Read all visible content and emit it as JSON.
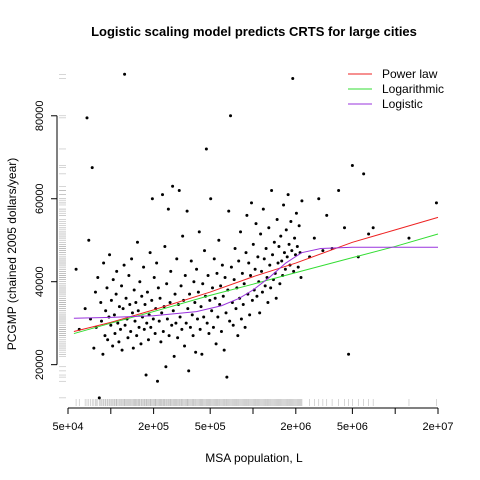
{
  "chart_data": {
    "type": "scatter",
    "title": "Logistic scaling model predicts CRTS for large cities",
    "xlabel": "MSA population, L",
    "ylabel": "PCGMP (chained 2005 dollars/year)",
    "xscale": "log",
    "xlim": [
      50000,
      20000000
    ],
    "ylim": [
      11000,
      92000
    ],
    "x_ticks": [
      {
        "value": 50000,
        "label": "5e+04"
      },
      {
        "value": 200000,
        "label": "2e+05"
      },
      {
        "value": 500000,
        "label": "5e+05"
      },
      {
        "value": 2000000,
        "label": "2e+06"
      },
      {
        "value": 5000000,
        "label": "5e+06"
      },
      {
        "value": 20000000,
        "label": "2e+07"
      }
    ],
    "x_minor_ticks": [
      100000,
      1000000,
      10000000
    ],
    "y_ticks": [
      {
        "value": 20000,
        "label": "20000"
      },
      {
        "value": 40000,
        "label": "40000"
      },
      {
        "value": 60000,
        "label": "60000"
      },
      {
        "value": 80000,
        "label": "80000"
      }
    ],
    "legend_position": "top-right",
    "series": [
      {
        "name": "Power law",
        "kind": "line",
        "color": "#ee2222",
        "x": [
          55000,
          100000,
          200000,
          500000,
          1000000,
          2000000,
          5000000,
          10000000,
          20000000
        ],
        "y": [
          28000,
          30200,
          33200,
          37500,
          41200,
          44500,
          49500,
          52500,
          55500
        ]
      },
      {
        "name": "Logarithmic",
        "kind": "line",
        "color": "#33dd33",
        "x": [
          55000,
          100000,
          200000,
          500000,
          1000000,
          2000000,
          5000000,
          10000000,
          20000000
        ],
        "y": [
          27500,
          30000,
          32800,
          36700,
          39400,
          42200,
          45800,
          48500,
          51500
        ]
      },
      {
        "name": "Logistic",
        "kind": "line",
        "color": "#9933dd",
        "x": [
          55000,
          100000,
          200000,
          400000,
          600000,
          800000,
          1000000,
          1300000,
          1700000,
          2200000,
          3000000,
          5000000,
          10000000,
          20000000
        ],
        "y": [
          31200,
          31400,
          31800,
          32800,
          34200,
          36000,
          38000,
          41000,
          44500,
          47000,
          48000,
          48300,
          48300,
          48300
        ]
      }
    ],
    "points": [
      [
        57000,
        43000
      ],
      [
        60000,
        28500
      ],
      [
        66000,
        33500
      ],
      [
        68000,
        79500
      ],
      [
        70000,
        50000
      ],
      [
        72000,
        31000
      ],
      [
        74000,
        67500
      ],
      [
        76000,
        24000
      ],
      [
        78000,
        37500
      ],
      [
        79000,
        29000
      ],
      [
        81000,
        41000
      ],
      [
        83000,
        12000
      ],
      [
        85000,
        35000
      ],
      [
        86000,
        30500
      ],
      [
        88000,
        22500
      ],
      [
        89000,
        44500
      ],
      [
        91000,
        27000
      ],
      [
        92000,
        33000
      ],
      [
        94000,
        38500
      ],
      [
        95000,
        26000
      ],
      [
        97000,
        31500
      ],
      [
        98000,
        46500
      ],
      [
        100000,
        29500
      ],
      [
        101000,
        35500
      ],
      [
        103000,
        24500
      ],
      [
        104000,
        40500
      ],
      [
        106000,
        32000
      ],
      [
        107000,
        27500
      ],
      [
        109000,
        37000
      ],
      [
        110000,
        42500
      ],
      [
        112000,
        30000
      ],
      [
        114000,
        25500
      ],
      [
        115000,
        34000
      ],
      [
        117000,
        28500
      ],
      [
        119000,
        39000
      ],
      [
        120000,
        23500
      ],
      [
        122000,
        33500
      ],
      [
        124000,
        44000
      ],
      [
        125000,
        90000
      ],
      [
        126000,
        29500
      ],
      [
        128000,
        36000
      ],
      [
        130000,
        31000
      ],
      [
        132000,
        26500
      ],
      [
        134000,
        41500
      ],
      [
        136000,
        34500
      ],
      [
        138000,
        28000
      ],
      [
        140000,
        45500
      ],
      [
        142000,
        32500
      ],
      [
        144000,
        24000
      ],
      [
        146000,
        38000
      ],
      [
        148000,
        30500
      ],
      [
        150000,
        35000
      ],
      [
        152000,
        27000
      ],
      [
        154000,
        49500
      ],
      [
        156000,
        33000
      ],
      [
        158000,
        29000
      ],
      [
        160000,
        40000
      ],
      [
        163000,
        25000
      ],
      [
        165000,
        36500
      ],
      [
        167000,
        31500
      ],
      [
        170000,
        43500
      ],
      [
        172000,
        28500
      ],
      [
        174000,
        34500
      ],
      [
        177000,
        17500
      ],
      [
        179000,
        30000
      ],
      [
        181000,
        37500
      ],
      [
        184000,
        26000
      ],
      [
        186000,
        32000
      ],
      [
        189000,
        47000
      ],
      [
        191000,
        29000
      ],
      [
        194000,
        35500
      ],
      [
        196000,
        60000
      ],
      [
        199000,
        31000
      ],
      [
        202000,
        41000
      ],
      [
        205000,
        27500
      ],
      [
        207000,
        33500
      ],
      [
        210000,
        44500
      ],
      [
        213000,
        16000
      ],
      [
        216000,
        38500
      ],
      [
        219000,
        30500
      ],
      [
        222000,
        36000
      ],
      [
        225000,
        25500
      ],
      [
        228000,
        32500
      ],
      [
        231000,
        61000
      ],
      [
        234000,
        28000
      ],
      [
        237000,
        34000
      ],
      [
        240000,
        48500
      ],
      [
        244000,
        19500
      ],
      [
        247000,
        39500
      ],
      [
        250000,
        31000
      ],
      [
        254000,
        57500
      ],
      [
        257000,
        27000
      ],
      [
        261000,
        35000
      ],
      [
        264000,
        42500
      ],
      [
        268000,
        29500
      ],
      [
        272000,
        63000
      ],
      [
        275000,
        33000
      ],
      [
        279000,
        22000
      ],
      [
        283000,
        37000
      ],
      [
        287000,
        30000
      ],
      [
        291000,
        45500
      ],
      [
        295000,
        26500
      ],
      [
        299000,
        34500
      ],
      [
        303000,
        62000
      ],
      [
        307000,
        31500
      ],
      [
        312000,
        39000
      ],
      [
        316000,
        28500
      ],
      [
        320000,
        51000
      ],
      [
        325000,
        35500
      ],
      [
        330000,
        24500
      ],
      [
        334000,
        41500
      ],
      [
        339000,
        30000
      ],
      [
        344000,
        57000
      ],
      [
        348000,
        33500
      ],
      [
        353000,
        18500
      ],
      [
        358000,
        37000
      ],
      [
        363000,
        29000
      ],
      [
        368000,
        45000
      ],
      [
        374000,
        32000
      ],
      [
        379000,
        27000
      ],
      [
        384000,
        40000
      ],
      [
        390000,
        35000
      ],
      [
        395000,
        23000
      ],
      [
        401000,
        43000
      ],
      [
        407000,
        31000
      ],
      [
        413000,
        37500
      ],
      [
        419000,
        52000
      ],
      [
        425000,
        28500
      ],
      [
        431000,
        34000
      ],
      [
        437000,
        22500
      ],
      [
        443000,
        39500
      ],
      [
        450000,
        31500
      ],
      [
        456000,
        47500
      ],
      [
        463000,
        36500
      ],
      [
        470000,
        72000
      ],
      [
        476000,
        30000
      ],
      [
        483000,
        41500
      ],
      [
        490000,
        27500
      ],
      [
        497000,
        35500
      ],
      [
        504000,
        60000
      ],
      [
        512000,
        33000
      ],
      [
        519000,
        38500
      ],
      [
        527000,
        29000
      ],
      [
        534000,
        45500
      ],
      [
        542000,
        36000
      ],
      [
        550000,
        25000
      ],
      [
        558000,
        42000
      ],
      [
        566000,
        31500
      ],
      [
        575000,
        50000
      ],
      [
        583000,
        34500
      ],
      [
        592000,
        39000
      ],
      [
        600000,
        28000
      ],
      [
        609000,
        44000
      ],
      [
        618000,
        36500
      ],
      [
        627000,
        23500
      ],
      [
        636000,
        41000
      ],
      [
        646000,
        32500
      ],
      [
        655000,
        17000
      ],
      [
        665000,
        38000
      ],
      [
        675000,
        57000
      ],
      [
        685000,
        30500
      ],
      [
        695000,
        80000
      ],
      [
        705000,
        43500
      ],
      [
        716000,
        35000
      ],
      [
        726000,
        29500
      ],
      [
        737000,
        40500
      ],
      [
        748000,
        48000
      ],
      [
        759000,
        33500
      ],
      [
        770000,
        38500
      ],
      [
        782000,
        27000
      ],
      [
        793000,
        45000
      ],
      [
        805000,
        36000
      ],
      [
        817000,
        52000
      ],
      [
        829000,
        31000
      ],
      [
        842000,
        42000
      ],
      [
        854000,
        34500
      ],
      [
        867000,
        39500
      ],
      [
        880000,
        29000
      ],
      [
        893000,
        47000
      ],
      [
        906000,
        56000
      ],
      [
        920000,
        37000
      ],
      [
        933000,
        44500
      ],
      [
        947000,
        32000
      ],
      [
        961000,
        41500
      ],
      [
        976000,
        59000
      ],
      [
        990000,
        35500
      ],
      [
        1005000,
        49000
      ],
      [
        1020000,
        38000
      ],
      [
        1035000,
        43000
      ],
      [
        1050000,
        54000
      ],
      [
        1066000,
        36500
      ],
      [
        1082000,
        46000
      ],
      [
        1098000,
        40000
      ],
      [
        1114000,
        32500
      ],
      [
        1131000,
        51500
      ],
      [
        1148000,
        42500
      ],
      [
        1165000,
        37500
      ],
      [
        1182000,
        57500
      ],
      [
        1200000,
        45500
      ],
      [
        1218000,
        39000
      ],
      [
        1236000,
        48000
      ],
      [
        1255000,
        41000
      ],
      [
        1273000,
        35000
      ],
      [
        1292000,
        53000
      ],
      [
        1312000,
        44000
      ],
      [
        1331000,
        38500
      ],
      [
        1351000,
        62000
      ],
      [
        1372000,
        46500
      ],
      [
        1392000,
        40500
      ],
      [
        1413000,
        49500
      ],
      [
        1434000,
        42000
      ],
      [
        1456000,
        36000
      ],
      [
        1478000,
        55000
      ],
      [
        1500000,
        44500
      ],
      [
        1522000,
        48500
      ],
      [
        1545000,
        39500
      ],
      [
        1568000,
        51000
      ],
      [
        1592000,
        45000
      ],
      [
        1616000,
        41500
      ],
      [
        1640000,
        58500
      ],
      [
        1664000,
        47000
      ],
      [
        1689000,
        43000
      ],
      [
        1714000,
        52500
      ],
      [
        1740000,
        46000
      ],
      [
        1766000,
        61000
      ],
      [
        1793000,
        49000
      ],
      [
        1820000,
        44000
      ],
      [
        1847000,
        54500
      ],
      [
        1875000,
        47500
      ],
      [
        1903000,
        89000
      ],
      [
        1931000,
        42500
      ],
      [
        1960000,
        50500
      ],
      [
        1990000,
        46500
      ],
      [
        2020000,
        56500
      ],
      [
        2050000,
        48500
      ],
      [
        2080000,
        43500
      ],
      [
        2111000,
        53500
      ],
      [
        2143000,
        47000
      ],
      [
        2175000,
        41000
      ],
      [
        2208000,
        59500
      ],
      [
        2500000,
        46000
      ],
      [
        2700000,
        50500
      ],
      [
        2900000,
        60000
      ],
      [
        3100000,
        47500
      ],
      [
        3300000,
        56000
      ],
      [
        3600000,
        48000
      ],
      [
        4000000,
        62000
      ],
      [
        4400000,
        53000
      ],
      [
        4700000,
        22500
      ],
      [
        5000000,
        68000
      ],
      [
        5500000,
        46000
      ],
      [
        6000000,
        66000
      ],
      [
        6500000,
        51500
      ],
      [
        7000000,
        53000
      ],
      [
        12500000,
        50500
      ],
      [
        19500000,
        59000
      ]
    ]
  }
}
